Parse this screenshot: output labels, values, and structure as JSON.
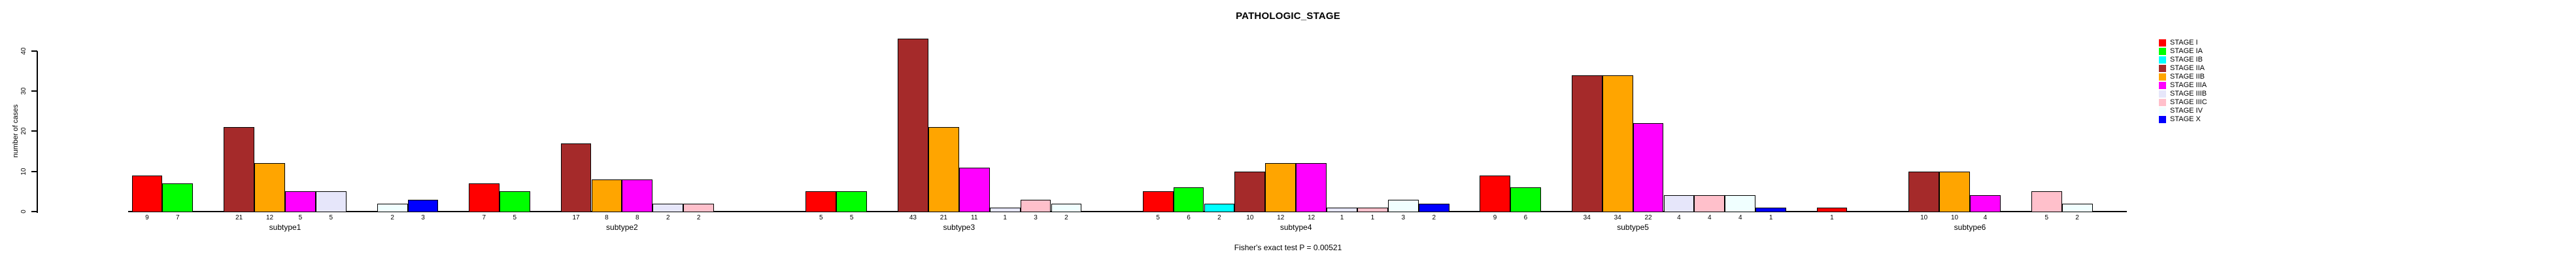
{
  "title": "PATHOLOGIC_STAGE",
  "footer": "Fisher's exact test P = 0.00521",
  "y_axis": {
    "label": "number of cases",
    "ticks": [
      0,
      10,
      20,
      30,
      40
    ]
  },
  "legend": {
    "items": [
      {
        "label": "STAGE I",
        "color": "#FF0000"
      },
      {
        "label": "STAGE IA",
        "color": "#00FF00"
      },
      {
        "label": "STAGE IB",
        "color": "#00FFFF"
      },
      {
        "label": "STAGE IIA",
        "color": "#A52A2A"
      },
      {
        "label": "STAGE IIB",
        "color": "#FFA500"
      },
      {
        "label": "STAGE IIIA",
        "color": "#FF00FF"
      },
      {
        "label": "STAGE IIIB",
        "color": "#E6E6FA"
      },
      {
        "label": "STAGE IIIC",
        "color": "#FFC0CB"
      },
      {
        "label": "STAGE IV",
        "color": "#F0FFFF"
      },
      {
        "label": "STAGE X",
        "color": "#0000FF"
      }
    ]
  },
  "chart_data": {
    "type": "bar",
    "grouped": true,
    "title": "PATHOLOGIC_STAGE",
    "xlabel": "",
    "ylabel": "number of cases",
    "ylim": [
      0,
      43
    ],
    "grid": false,
    "legend_position": "right",
    "annotation": "Fisher's exact test P = 0.00521",
    "categories": [
      "subtype1",
      "subtype2",
      "subtype3",
      "subtype4",
      "subtype5",
      "subtype6"
    ],
    "series": [
      {
        "name": "STAGE I",
        "color": "#FF0000",
        "values": [
          9,
          7,
          5,
          5,
          9,
          1
        ]
      },
      {
        "name": "STAGE IA",
        "color": "#00FF00",
        "values": [
          7,
          5,
          5,
          6,
          6,
          0
        ]
      },
      {
        "name": "STAGE IB",
        "color": "#00FFFF",
        "values": [
          0,
          0,
          0,
          2,
          0,
          0
        ]
      },
      {
        "name": "STAGE IIA",
        "color": "#A52A2A",
        "values": [
          21,
          17,
          43,
          10,
          34,
          10
        ]
      },
      {
        "name": "STAGE IIB",
        "color": "#FFA500",
        "values": [
          12,
          8,
          21,
          12,
          34,
          10
        ]
      },
      {
        "name": "STAGE IIIA",
        "color": "#FF00FF",
        "values": [
          5,
          8,
          11,
          12,
          22,
          4
        ]
      },
      {
        "name": "STAGE IIIB",
        "color": "#E6E6FA",
        "values": [
          5,
          2,
          1,
          1,
          4,
          0
        ]
      },
      {
        "name": "STAGE IIIC",
        "color": "#FFC0CB",
        "values": [
          0,
          2,
          3,
          1,
          4,
          5
        ]
      },
      {
        "name": "STAGE IV",
        "color": "#F0FFFF",
        "values": [
          2,
          0,
          2,
          3,
          4,
          2
        ]
      },
      {
        "name": "STAGE X",
        "color": "#0000FF",
        "values": [
          3,
          0,
          0,
          2,
          1,
          0
        ]
      }
    ]
  }
}
